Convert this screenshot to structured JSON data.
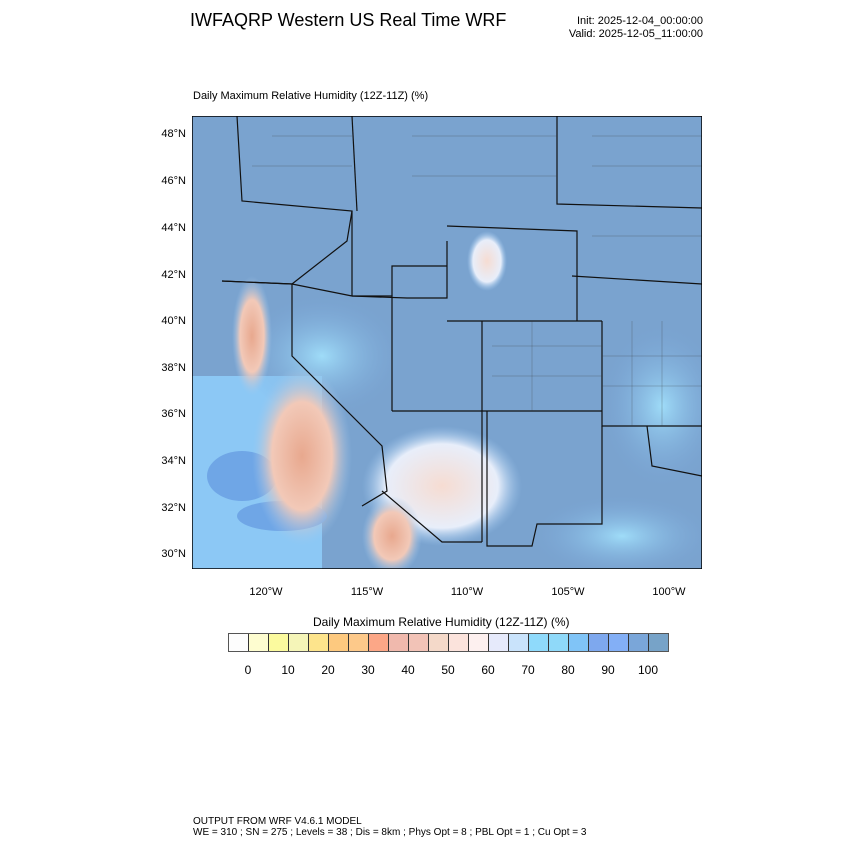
{
  "header": {
    "title": "IWFAQRP Western US Real Time WRF",
    "init": "Init: 2025-12-04_00:00:00",
    "valid": "Valid: 2025-12-05_11:00:00"
  },
  "plot": {
    "subtitle": "Daily Maximum Relative Humidity (12Z-11Z)   (%)",
    "lat_labels": [
      "48°N",
      "46°N",
      "44°N",
      "42°N",
      "40°N",
      "38°N",
      "36°N",
      "34°N",
      "32°N",
      "30°N"
    ],
    "lon_labels": [
      "120°W",
      "115°W",
      "110°W",
      "105°W",
      "100°W"
    ]
  },
  "colorbar": {
    "title": "Daily Maximum Relative Humidity (12Z-11Z)  (%)",
    "labels": [
      "0",
      "10",
      "20",
      "30",
      "40",
      "50",
      "60",
      "70",
      "80",
      "90",
      "100"
    ],
    "colors": [
      "#fdfdfd",
      "#fefdd0",
      "#fbfa9e",
      "#f5f5b8",
      "#fde48c",
      "#fdc97f",
      "#fdc98a",
      "#fca787",
      "#f0b9ad",
      "#f2c3b7",
      "#f4d9c9",
      "#fbe3dc",
      "#fdf0ef",
      "#e6eafb",
      "#c9e3fb",
      "#8fdafb",
      "#8fd9f9",
      "#80c4f7",
      "#7ea8ee",
      "#83aff6",
      "#7aa6d9",
      "#77a3c8"
    ]
  },
  "footer": {
    "line1": "OUTPUT FROM WRF V4.6.1 MODEL",
    "line2": "WE = 310 ; SN = 275 ; Levels = 38 ; Dis = 8km ; Phys Opt = 8 ; PBL Opt = 1 ; Cu Opt = 3"
  }
}
